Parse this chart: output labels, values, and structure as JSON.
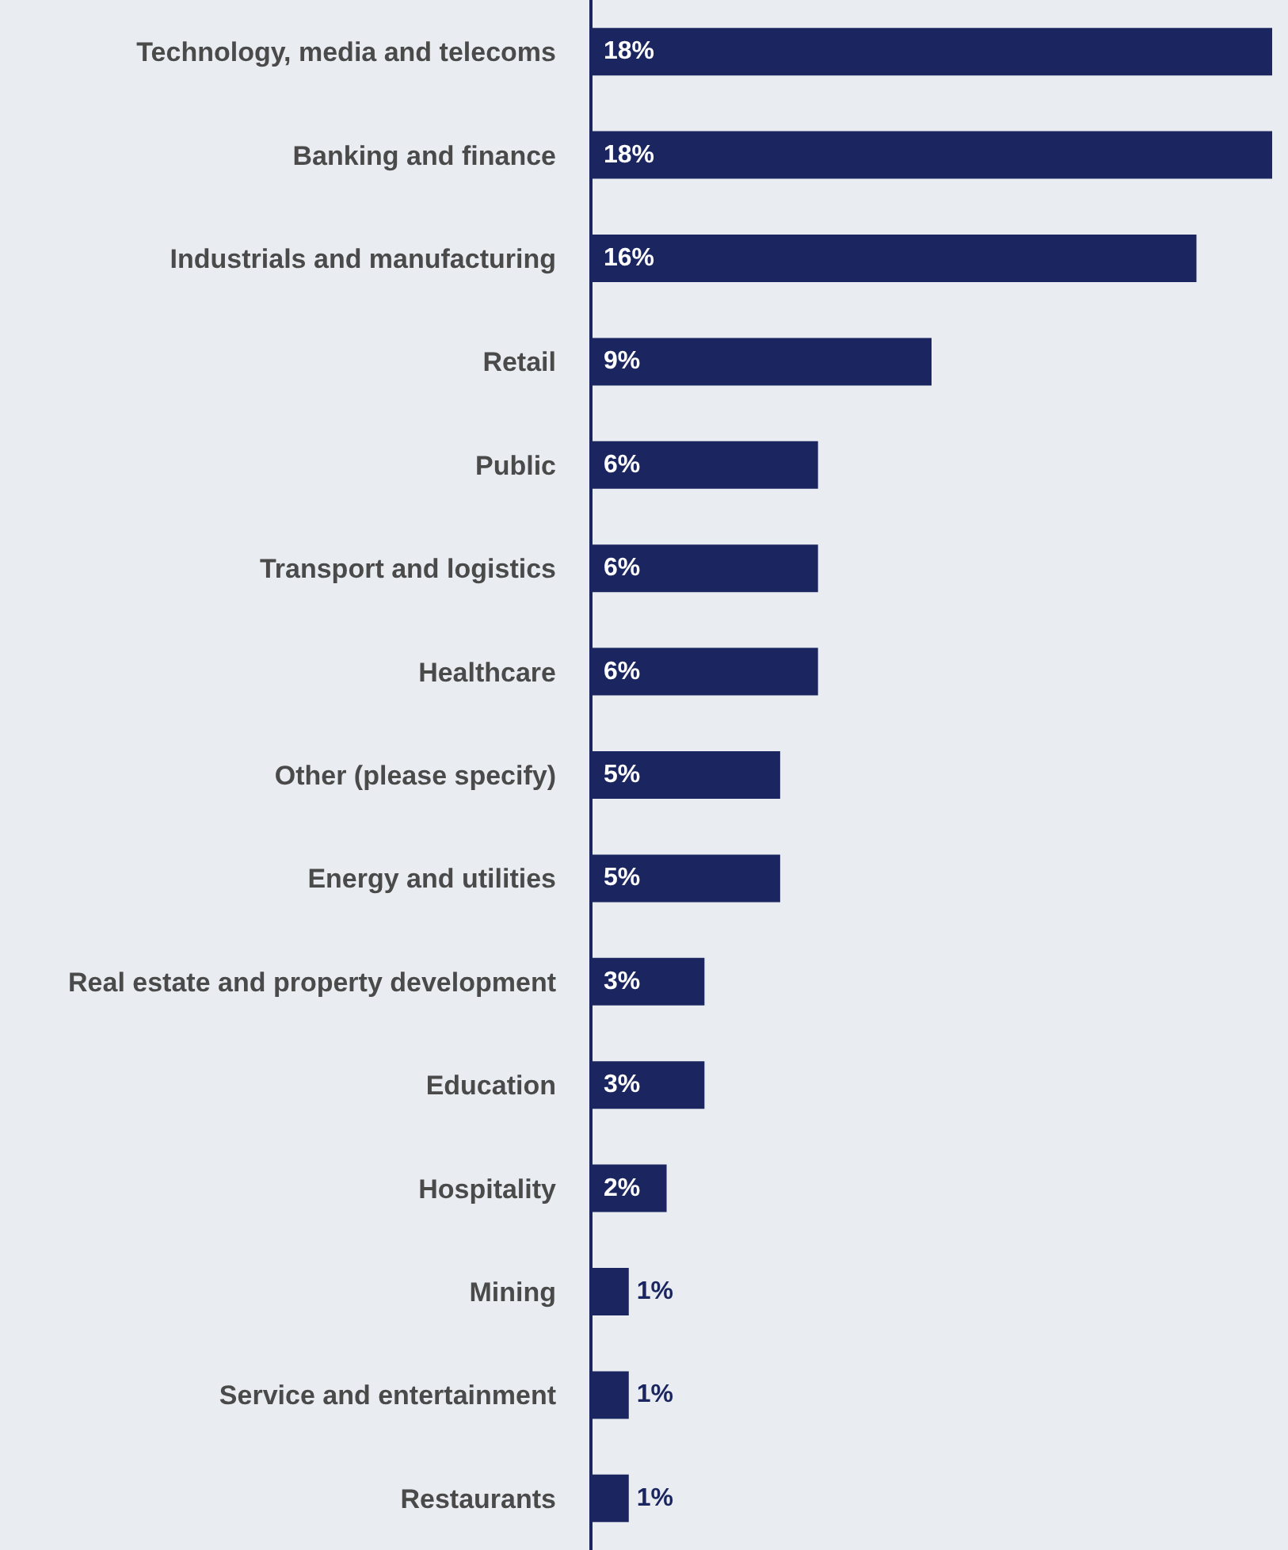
{
  "chart_data": {
    "type": "bar",
    "orientation": "horizontal",
    "categories": [
      "Technology, media and telecoms",
      "Banking and finance",
      "Industrials and manufacturing",
      "Retail",
      "Public",
      "Transport and logistics",
      "Healthcare",
      "Other (please specify)",
      "Energy and utilities",
      "Real estate and property development",
      "Education",
      "Hospitality",
      "Mining",
      "Service and entertainment",
      "Restaurants"
    ],
    "values": [
      18,
      18,
      16,
      9,
      6,
      6,
      6,
      5,
      5,
      3,
      3,
      2,
      1,
      1,
      1
    ],
    "value_labels": [
      "18%",
      "18%",
      "16%",
      "9%",
      "6%",
      "6%",
      "6%",
      "5%",
      "5%",
      "3%",
      "3%",
      "2%",
      "1%",
      "1%",
      "1%"
    ],
    "color": "#1b2660"
  }
}
